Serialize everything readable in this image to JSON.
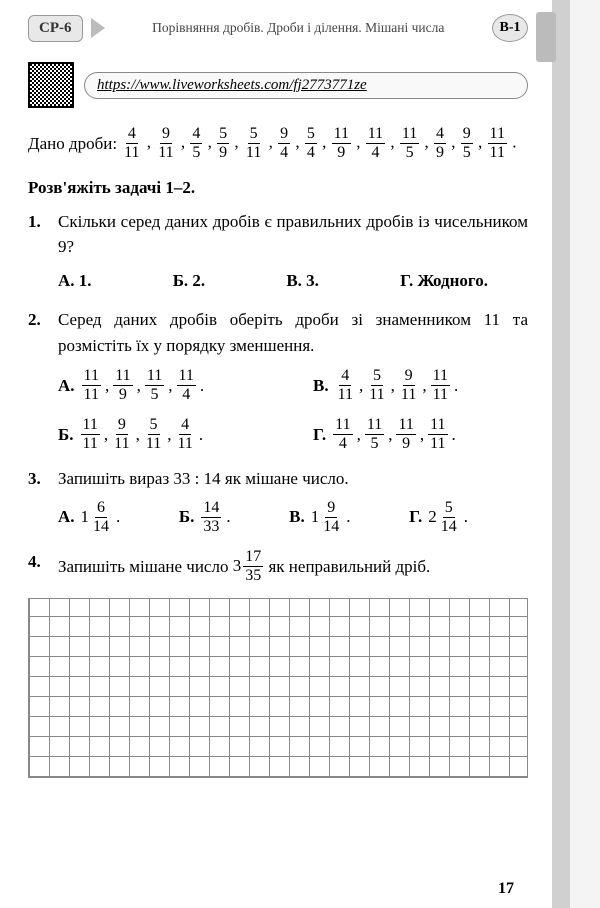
{
  "header": {
    "badge": "СР-6",
    "title": "Порівняння дробів. Дроби і ділення. Мішані числа",
    "variant": "В-1"
  },
  "url": "https://www.liveworksheets.com/fj2773771ze",
  "given": {
    "label": "Дано дроби:",
    "fracs": [
      {
        "n": "4",
        "d": "11"
      },
      {
        "n": "9",
        "d": "11"
      },
      {
        "n": "4",
        "d": "5"
      },
      {
        "n": "5",
        "d": "9"
      },
      {
        "n": "5",
        "d": "11"
      },
      {
        "n": "9",
        "d": "4"
      },
      {
        "n": "5",
        "d": "4"
      },
      {
        "n": "11",
        "d": "9"
      },
      {
        "n": "11",
        "d": "4"
      },
      {
        "n": "11",
        "d": "5"
      },
      {
        "n": "4",
        "d": "9"
      },
      {
        "n": "9",
        "d": "5"
      },
      {
        "n": "11",
        "d": "11"
      }
    ]
  },
  "tasks_head": "Розв'яжіть задачі 1–2.",
  "q1": {
    "num": "1.",
    "text": "Скільки серед даних дробів є правильних дробів із чисельником 9?",
    "opts": {
      "A": "А. 1.",
      "B": "Б. 2.",
      "V": "В. 3.",
      "G": "Г. Жодного."
    }
  },
  "q2": {
    "num": "2.",
    "text": "Серед даних дробів оберіть дроби зі знаменником 11 та розмістіть їх у порядку зменшення.",
    "opts": {
      "A": {
        "lbl": "А.",
        "f": [
          {
            "n": "11",
            "d": "11"
          },
          {
            "n": "11",
            "d": "9"
          },
          {
            "n": "11",
            "d": "5"
          },
          {
            "n": "11",
            "d": "4"
          }
        ]
      },
      "V": {
        "lbl": "В.",
        "f": [
          {
            "n": "4",
            "d": "11"
          },
          {
            "n": "5",
            "d": "11"
          },
          {
            "n": "9",
            "d": "11"
          },
          {
            "n": "11",
            "d": "11"
          }
        ]
      },
      "B": {
        "lbl": "Б.",
        "f": [
          {
            "n": "11",
            "d": "11"
          },
          {
            "n": "9",
            "d": "11"
          },
          {
            "n": "5",
            "d": "11"
          },
          {
            "n": "4",
            "d": "11"
          }
        ]
      },
      "G": {
        "lbl": "Г.",
        "f": [
          {
            "n": "11",
            "d": "4"
          },
          {
            "n": "11",
            "d": "5"
          },
          {
            "n": "11",
            "d": "9"
          },
          {
            "n": "11",
            "d": "11"
          }
        ]
      }
    }
  },
  "q3": {
    "num": "3.",
    "text": "Запишіть вираз 33 : 14 як мішане число.",
    "opts": {
      "A": {
        "lbl": "А.",
        "whole": "1",
        "n": "6",
        "d": "14"
      },
      "B": {
        "lbl": "Б.",
        "whole": "",
        "n": "14",
        "d": "33"
      },
      "V": {
        "lbl": "В.",
        "whole": "1",
        "n": "9",
        "d": "14"
      },
      "G": {
        "lbl": "Г.",
        "whole": "2",
        "n": "5",
        "d": "14"
      }
    }
  },
  "q4": {
    "num": "4.",
    "pre": "Запишіть мішане число ",
    "mixed": {
      "whole": "3",
      "n": "17",
      "d": "35"
    },
    "post": " як неправильний дріб."
  },
  "page_num": "17"
}
